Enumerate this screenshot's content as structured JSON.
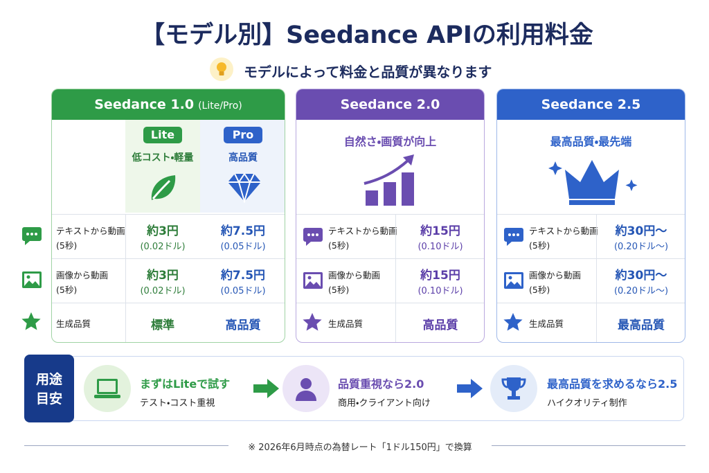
{
  "header": {
    "title": "【モデル別】Seedance APIの利用料金",
    "subtitle": "モデルによって料金と品質が異なります"
  },
  "cards": [
    {
      "name": "Seedance 1.0",
      "variant": "(Lite/Pro)",
      "tiers": [
        {
          "badge": "Lite",
          "note": "低コスト・軽量"
        },
        {
          "badge": "Pro",
          "note": "高品質"
        }
      ],
      "rows": [
        {
          "label": "テキストから動画",
          "sub": "(5秒)",
          "values": [
            {
              "yen": "約3円",
              "usd": "(0.02ドル)"
            },
            {
              "yen": "約7.5円",
              "usd": "(0.05ドル)"
            }
          ]
        },
        {
          "label": "画像から動画",
          "sub": "(5秒)",
          "values": [
            {
              "yen": "約3円",
              "usd": "(0.02ドル)"
            },
            {
              "yen": "約7.5円",
              "usd": "(0.05ドル)"
            }
          ]
        },
        {
          "label": "生成品質",
          "values": [
            {
              "yen": "標準"
            },
            {
              "yen": "高品質"
            }
          ]
        }
      ]
    },
    {
      "name": "Seedance 2.0",
      "tagline": "自然さ・画質が向上",
      "rows": [
        {
          "label": "テキストから動画",
          "sub": "(5秒)",
          "values": [
            {
              "yen": "約15円",
              "usd": "(0.10ドル)"
            }
          ]
        },
        {
          "label": "画像から動画",
          "sub": "(5秒)",
          "values": [
            {
              "yen": "約15円",
              "usd": "(0.10ドル)"
            }
          ]
        },
        {
          "label": "生成品質",
          "values": [
            {
              "yen": "高品質"
            }
          ]
        }
      ]
    },
    {
      "name": "Seedance 2.5",
      "tagline": "最高品質・最先端",
      "rows": [
        {
          "label": "テキストから動画",
          "sub": "(5秒)",
          "values": [
            {
              "yen": "約30円〜",
              "usd": "(0.20ドル〜)"
            }
          ]
        },
        {
          "label": "画像から動画",
          "sub": "(5秒)",
          "values": [
            {
              "yen": "約30円〜",
              "usd": "(0.20ドル〜)"
            }
          ]
        },
        {
          "label": "生成品質",
          "values": [
            {
              "yen": "最高品質"
            }
          ]
        }
      ]
    }
  ],
  "usage": {
    "label": [
      "用途",
      "目安"
    ],
    "steps": [
      {
        "title": "まずはLiteで試す",
        "note": "テスト・コスト重視"
      },
      {
        "title": "品質重視なら2.0",
        "note": "商用・クライアント向け"
      },
      {
        "title": "最高品質を求めるなら2.5",
        "note": "ハイクオリティ制作"
      }
    ]
  },
  "footnote": "※ 2026年6月時点の為替レート「1ドル150円」で換算"
}
